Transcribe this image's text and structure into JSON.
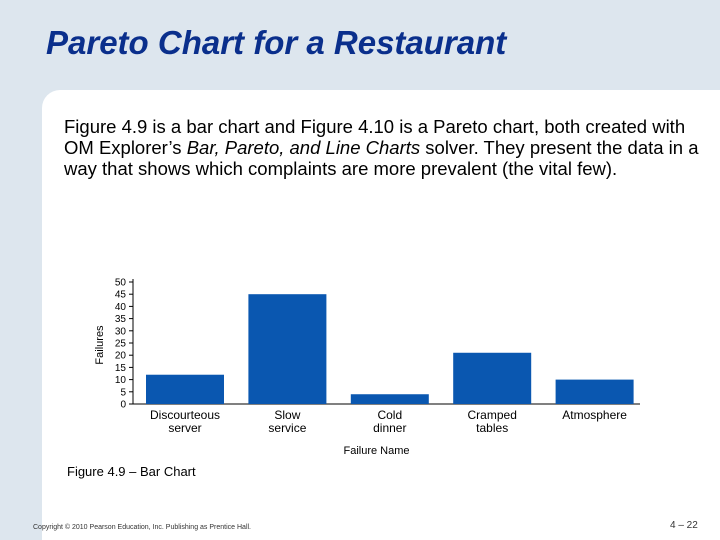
{
  "slide": {
    "title": "Pareto Chart for a Restaurant",
    "body_before": "Figure 4.9 is a bar chart and Figure 4.10 is a Pareto chart, both created with OM Explorer’s ",
    "body_emphasis": "Bar, Pareto, and Line Charts",
    "body_after": " solver. They present the data in a way that shows which complaints are more prevalent (the vital few).",
    "caption": "Figure 4.9 –  Bar Chart",
    "copyright": "Copyright © 2010 Pearson Education, Inc. Publishing as Prentice Hall.",
    "page_number": "4 – 22"
  },
  "colors": {
    "bar": "#0a57b0",
    "title": "#0a2f8c",
    "background": "#dde6ee",
    "panel": "#ffffff"
  },
  "chart_data": {
    "type": "bar",
    "title": "",
    "xlabel": "Failure Name",
    "ylabel": "Failures",
    "ylim": [
      0,
      50
    ],
    "yticks": [
      0,
      5,
      10,
      15,
      20,
      25,
      30,
      35,
      40,
      45,
      50
    ],
    "grid": false,
    "categories": [
      "Discourteous server",
      "Slow service",
      "Cold dinner",
      "Cramped tables",
      "Atmosphere"
    ],
    "values": [
      12,
      45,
      4,
      21,
      10
    ]
  }
}
